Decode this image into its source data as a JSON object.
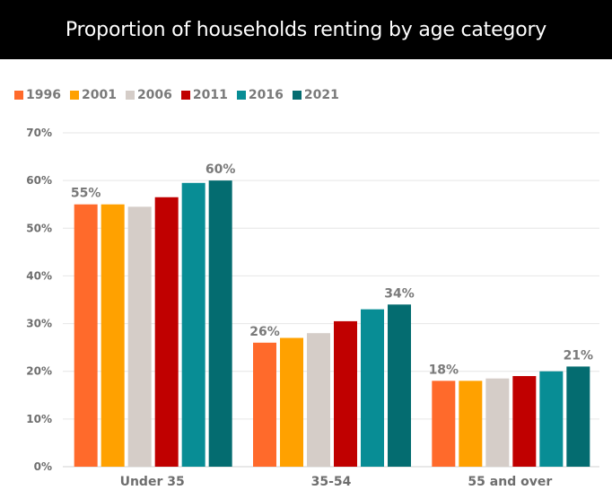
{
  "title": "Proportion of households renting by age category",
  "chart_data": {
    "type": "bar",
    "categories": [
      "Under 35",
      "35-54",
      "55 and over"
    ],
    "series": [
      {
        "name": "1996",
        "color": "#ff6a2b",
        "values": [
          55,
          26,
          18
        ]
      },
      {
        "name": "2001",
        "color": "#ffa100",
        "values": [
          55,
          27,
          18
        ]
      },
      {
        "name": "2006",
        "color": "#d5cdc8",
        "values": [
          54.5,
          28,
          18.5
        ]
      },
      {
        "name": "2011",
        "color": "#c00000",
        "values": [
          56.5,
          30.5,
          19
        ]
      },
      {
        "name": "2016",
        "color": "#088d95",
        "values": [
          59.5,
          33,
          20
        ]
      },
      {
        "name": "2021",
        "color": "#046c70",
        "values": [
          60,
          34,
          21
        ]
      }
    ],
    "data_labels": [
      {
        "category": "Under 35",
        "series": "1996",
        "text": "55%"
      },
      {
        "category": "Under 35",
        "series": "2021",
        "text": "60%"
      },
      {
        "category": "35-54",
        "series": "1996",
        "text": "26%"
      },
      {
        "category": "35-54",
        "series": "2021",
        "text": "34%"
      },
      {
        "category": "55 and over",
        "series": "1996",
        "text": "18%"
      },
      {
        "category": "55 and over",
        "series": "2021",
        "text": "21%"
      }
    ],
    "y_ticks": [
      "0%",
      "10%",
      "20%",
      "30%",
      "40%",
      "50%",
      "60%",
      "70%"
    ],
    "ylim": [
      0,
      70
    ],
    "grid": true,
    "legend_position": "top-left"
  }
}
